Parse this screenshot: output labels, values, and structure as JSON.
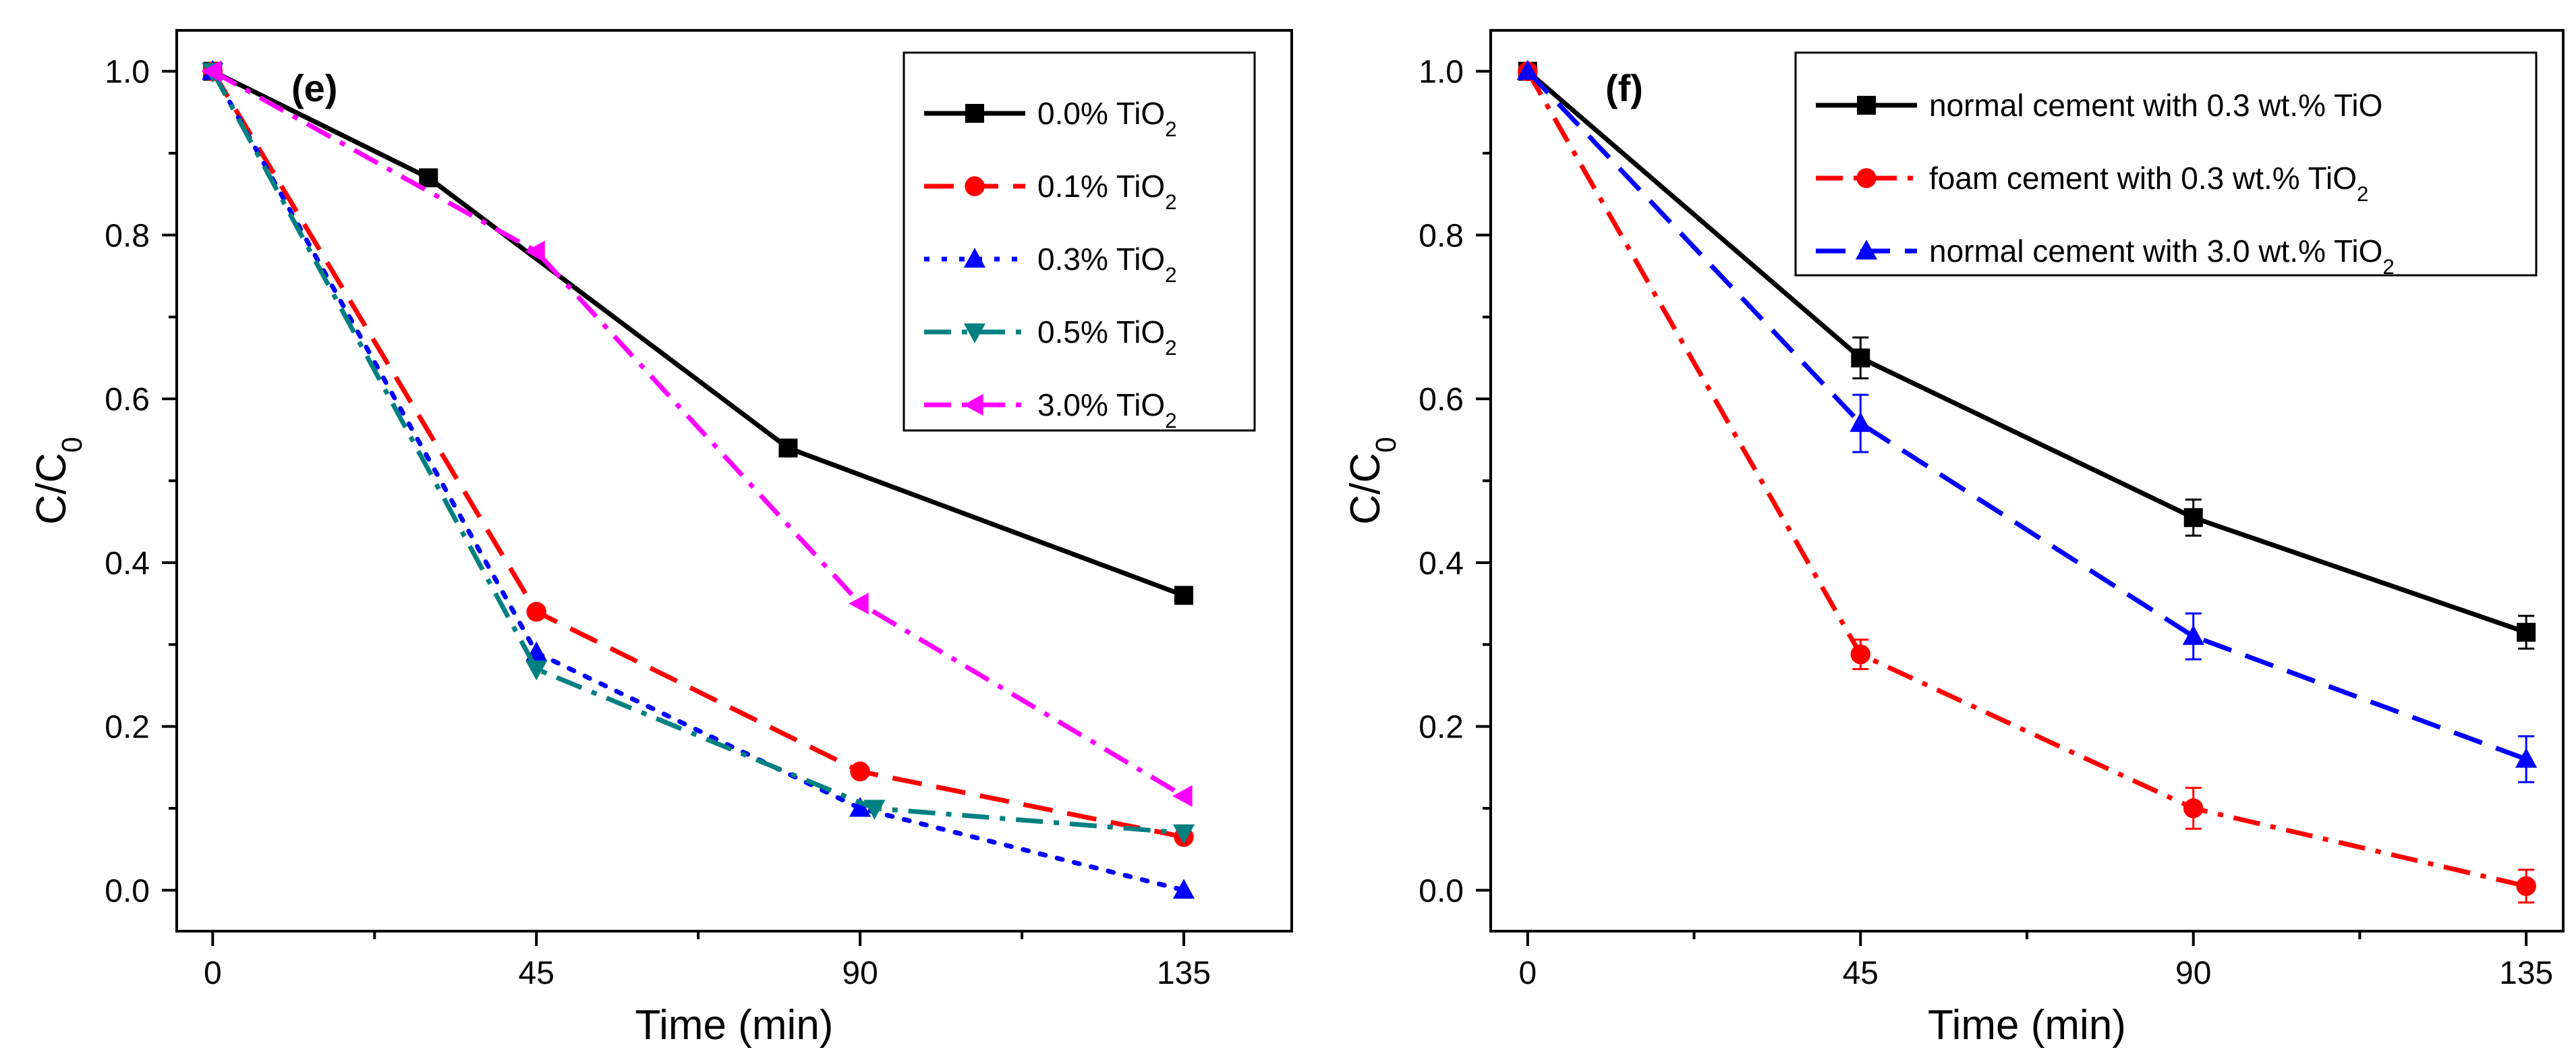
{
  "chart_data": [
    {
      "type": "line",
      "panel_label": "(e)",
      "xlabel": "Time (min)",
      "ylabel": "C/C",
      "ylabel_sub": "0",
      "xlim": [
        -5,
        150
      ],
      "ylim": [
        -0.05,
        1.05
      ],
      "xticks": [
        0,
        45,
        90,
        135
      ],
      "yticks": [
        0.0,
        0.2,
        0.4,
        0.6,
        0.8,
        1.0
      ],
      "legend_position": "top-right",
      "series": [
        {
          "name": "0.0% TiO",
          "name_sub": "2",
          "color": "#000000",
          "marker": "square",
          "dash": "solid",
          "x": [
            0,
            30,
            80,
            135
          ],
          "y": [
            1.0,
            0.87,
            0.54,
            0.36
          ]
        },
        {
          "name": "0.1% TiO",
          "name_sub": "2",
          "color": "#ff0000",
          "marker": "circle",
          "dash": "dash",
          "x": [
            0,
            45,
            90,
            135
          ],
          "y": [
            1.0,
            0.34,
            0.145,
            0.065
          ]
        },
        {
          "name": "0.3% TiO",
          "name_sub": "2",
          "color": "#0000ff",
          "marker": "triangle-up",
          "dash": "dot",
          "x": [
            0,
            45,
            90,
            135
          ],
          "y": [
            1.0,
            0.29,
            0.1,
            0.0
          ]
        },
        {
          "name": "0.5% TiO",
          "name_sub": "2",
          "color": "#008080",
          "marker": "triangle-down",
          "dash": "dashdot",
          "x": [
            0,
            45,
            92,
            135
          ],
          "y": [
            1.0,
            0.27,
            0.1,
            0.07
          ]
        },
        {
          "name": "3.0% TiO",
          "name_sub": "2",
          "color": "#ff00ff",
          "marker": "triangle-left",
          "dash": "dashdot",
          "x": [
            0,
            45,
            90,
            135
          ],
          "y": [
            1.0,
            0.78,
            0.35,
            0.115
          ]
        }
      ]
    },
    {
      "type": "line",
      "panel_label": "(f)",
      "xlabel": "Time (min)",
      "ylabel": "C/C",
      "ylabel_sub": "0",
      "xlim": [
        -5,
        140
      ],
      "ylim": [
        -0.05,
        1.05
      ],
      "xticks": [
        0,
        45,
        90,
        135
      ],
      "yticks": [
        0.0,
        0.2,
        0.4,
        0.6,
        0.8,
        1.0
      ],
      "legend_position": "top-right",
      "series": [
        {
          "name": "normal cement with 0.3 wt.% TiO",
          "name_sub": "",
          "color": "#000000",
          "marker": "square",
          "dash": "solid",
          "x": [
            0,
            45,
            90,
            135
          ],
          "y": [
            1.0,
            0.65,
            0.455,
            0.315
          ],
          "err": [
            0,
            0.025,
            0.022,
            0.02
          ]
        },
        {
          "name": "foam cement with 0.3 wt.% TiO",
          "name_sub": "2",
          "color": "#ff0000",
          "marker": "circle",
          "dash": "dashdot",
          "x": [
            0,
            45,
            90,
            135
          ],
          "y": [
            1.0,
            0.288,
            0.1,
            0.005
          ],
          "err": [
            0,
            0.018,
            0.025,
            0.02
          ]
        },
        {
          "name": "normal cement with 3.0 wt.% TiO",
          "name_sub": "2",
          "color": "#0000ff",
          "marker": "triangle-up",
          "dash": "dash",
          "x": [
            0,
            45,
            90,
            135
          ],
          "y": [
            1.0,
            0.57,
            0.31,
            0.16
          ],
          "err": [
            0,
            0.035,
            0.028,
            0.028
          ]
        }
      ]
    }
  ]
}
